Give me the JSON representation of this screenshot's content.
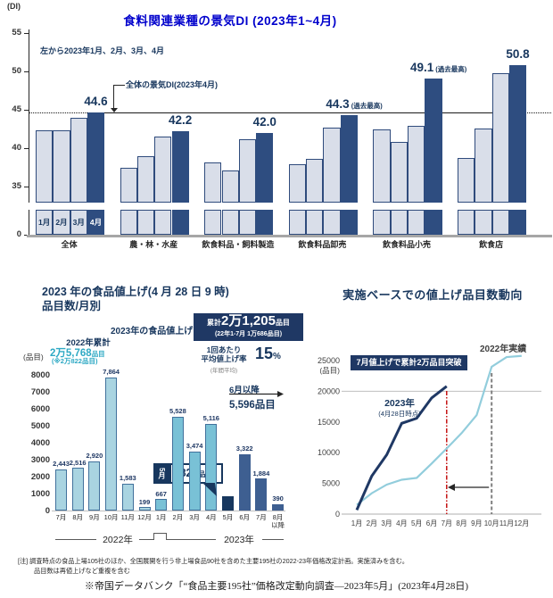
{
  "colors": {
    "title_blue": "#0000CC",
    "navy": "#17365D",
    "bar_light": "#D9DEE9",
    "bar_navy": "#2E4D80",
    "teal_2022": "#A9D4E1",
    "teal_2023": "#79C1D6",
    "navy_may": "#17375E",
    "navy_future": "#3E5F91",
    "teal_text": "#2EA9C4",
    "line_2022": "#92CDDC",
    "line_2023": "#1F3864",
    "red_line": "#C00000",
    "gray_line": "#808080"
  },
  "chart_data": [
    {
      "id": "di-by-industry",
      "type": "bar",
      "title": "食料関連業種の景気DI (2023年1~4月)",
      "unit_label": "(DI)",
      "note": "左から2023年1月、2月、3月、4月",
      "reference_line": {
        "value": 44.6,
        "label": "全体の景気DI(2023年4月)"
      },
      "y_ticks": [
        55,
        50,
        45,
        40,
        35,
        0
      ],
      "ylim_display": [
        35,
        55
      ],
      "series_labels": [
        "1月",
        "2月",
        "3月",
        "4月"
      ],
      "groups": [
        {
          "category": "全体",
          "values": [
            42.3,
            42.3,
            43.9,
            44.6
          ],
          "value_label": "44.6",
          "note": ""
        },
        {
          "category": "農・林・水産",
          "values": [
            37.4,
            39.0,
            41.5,
            42.2
          ],
          "value_label": "42.2",
          "note": ""
        },
        {
          "category": "飲食料品・飼料製造",
          "values": [
            38.1,
            37.1,
            41.2,
            42.0
          ],
          "value_label": "42.0",
          "note": ""
        },
        {
          "category": "飲食料品卸売",
          "values": [
            37.9,
            38.6,
            42.7,
            44.3
          ],
          "value_label": "44.3",
          "note": "(過去最高)"
        },
        {
          "category": "飲食料品小売",
          "values": [
            42.4,
            40.8,
            42.9,
            49.1
          ],
          "value_label": "49.1",
          "note": "(過去最高)"
        },
        {
          "category": "飲食店",
          "values": [
            38.7,
            42.6,
            49.8,
            50.8
          ],
          "value_label": "50.8",
          "note": ""
        }
      ]
    },
    {
      "id": "price-hike-items-by-month",
      "type": "bar",
      "title_line1": "2023 年の食品値上げ(4 月 28 日 9 時)",
      "title_line2": "品目数/月別",
      "unit_label": "(品目)",
      "y_ticks": [
        8000,
        7000,
        6000,
        5000,
        4000,
        3000,
        2000,
        1000,
        0
      ],
      "year_groups": [
        "2022年",
        "2023年"
      ],
      "bars": [
        {
          "month": "7月",
          "value": 2443,
          "label": "2,443",
          "year": 2022
        },
        {
          "month": "8月",
          "value": 2516,
          "label": "2,516",
          "year": 2022
        },
        {
          "month": "9月",
          "value": 2920,
          "label": "2,920",
          "year": 2022
        },
        {
          "month": "10月",
          "value": 7864,
          "label": "7,864",
          "year": 2022
        },
        {
          "month": "11月",
          "value": 1583,
          "label": "1,583",
          "year": 2022
        },
        {
          "month": "12月",
          "value": 199,
          "label": "199",
          "year": 2022
        },
        {
          "month": "1月",
          "value": 667,
          "label": "667",
          "year": 2023
        },
        {
          "month": "2月",
          "value": 5528,
          "label": "5,528",
          "year": 2023
        },
        {
          "month": "3月",
          "value": 3474,
          "label": "3,474",
          "year": 2023
        },
        {
          "month": "4月",
          "value": 5116,
          "label": "5,116",
          "year": 2023
        },
        {
          "month": "5月",
          "value": 824,
          "label": "",
          "year": 2023,
          "highlight": "may"
        },
        {
          "month": "6月",
          "value": 3322,
          "label": "3,322",
          "year": 2023,
          "highlight": "future"
        },
        {
          "month": "7月",
          "value": 1884,
          "label": "1,884",
          "year": 2023,
          "highlight": "future"
        },
        {
          "month": "8月\n以降",
          "value": 390,
          "label": "390",
          "year": 2023,
          "highlight": "future"
        }
      ],
      "annotations": {
        "header_2023": "2023年の食品値上げ",
        "cum_prefix": "累計",
        "cum_main": "2万1,205",
        "cum_unit": "品目",
        "cum_sub": "(22年1-7月 1万686品目)",
        "rate_label1": "1回あたり",
        "rate_label2": "平均値上げ率",
        "rate_sub": "(年間平均)",
        "rate_value": "15",
        "rate_unit": "%",
        "total_2022_title": "2022年累計",
        "total_2022_main": "2万5,768",
        "total_2022_unit": "品目",
        "total_2022_sub": "(※2万822品目)",
        "may_month": "5月",
        "may_main": "824",
        "may_unit": "品目",
        "june_onward_label": "6月以降",
        "june_onward_value": "5,596品目"
      }
    },
    {
      "id": "cumulative-items-trend",
      "type": "line",
      "title": "実施ベースでの値上げ品目数動向",
      "unit_label": "(品目)",
      "y_ticks": [
        25000,
        20000,
        15000,
        10000,
        5000,
        0
      ],
      "x_ticks": [
        "1月",
        "2月",
        "3月",
        "4月",
        "5月",
        "6月",
        "7月",
        "8月",
        "9月",
        "10月",
        "11月",
        "12月"
      ],
      "series": [
        {
          "name": "2022年実績",
          "values": [
            1500,
            3400,
            4800,
            5600,
            5900,
            8243,
            10686,
            13202,
            16122,
            23986,
            25569,
            25768
          ]
        },
        {
          "name": "2023年",
          "name_sub": "(4月28日時点)",
          "values": [
            667,
            6195,
            9669,
            14785,
            15609,
            18931,
            20815
          ]
        }
      ],
      "callout": "7月値上げで累計2万品目突破",
      "vline_red_month": "7月",
      "vline_gray_month": "10月"
    }
  ],
  "footnote": {
    "line1": "[注] 調査時点の食品上場105社のほか、全国展開を行う非上場食品90社を含めた主要195社の2022-23年価格改定計画。実施済みを含む。",
    "line2": "品目数は再値上げなど重複を含む",
    "source": "※帝国データバンク「“食品主要195社”価格改定動向調査―2023年5月」(2023年4月28日)"
  }
}
